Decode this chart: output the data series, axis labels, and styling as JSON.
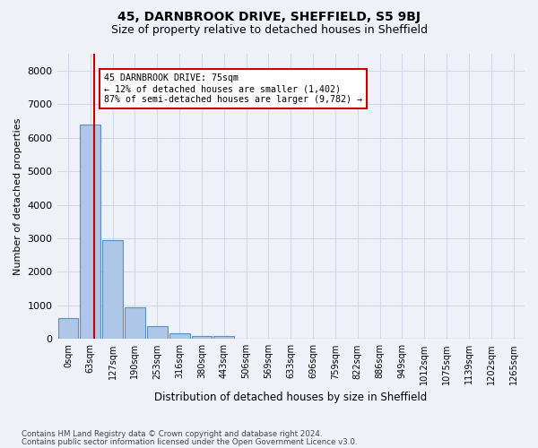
{
  "title": "45, DARNBROOK DRIVE, SHEFFIELD, S5 9BJ",
  "subtitle": "Size of property relative to detached houses in Sheffield",
  "xlabel": "Distribution of detached houses by size in Sheffield",
  "ylabel": "Number of detached properties",
  "bin_labels": [
    "0sqm",
    "63sqm",
    "127sqm",
    "190sqm",
    "253sqm",
    "316sqm",
    "380sqm",
    "443sqm",
    "506sqm",
    "569sqm",
    "633sqm",
    "696sqm",
    "759sqm",
    "822sqm",
    "886sqm",
    "949sqm",
    "1012sqm",
    "1075sqm",
    "1139sqm",
    "1202sqm",
    "1265sqm"
  ],
  "bar_heights": [
    620,
    6400,
    2950,
    950,
    380,
    170,
    100,
    80,
    0,
    0,
    0,
    0,
    0,
    0,
    0,
    0,
    0,
    0,
    0,
    0,
    0
  ],
  "bar_color": "#aec6e8",
  "bar_edge_color": "#5a8fc0",
  "property_size": 75,
  "property_label": "45 DARNBROOK DRIVE: 75sqm",
  "annotation_line1": "← 12% of detached houses are smaller (1,402)",
  "annotation_line2": "87% of semi-detached houses are larger (9,782) →",
  "vline_color": "#cc0000",
  "annotation_box_edge_color": "#cc0000",
  "ylim": [
    0,
    8500
  ],
  "yticks": [
    0,
    1000,
    2000,
    3000,
    4000,
    5000,
    6000,
    7000,
    8000
  ],
  "grid_color": "#d0d8e8",
  "background_color": "#eef2f8",
  "footnote1": "Contains HM Land Registry data © Crown copyright and database right 2024.",
  "footnote2": "Contains public sector information licensed under the Open Government Licence v3.0."
}
